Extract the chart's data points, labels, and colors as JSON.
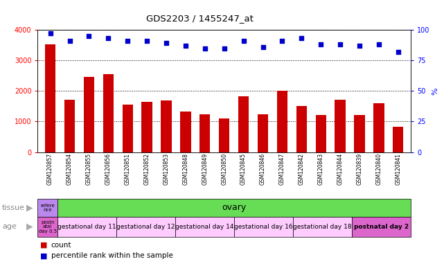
{
  "title": "GDS2203 / 1455247_at",
  "samples": [
    "GSM120857",
    "GSM120854",
    "GSM120855",
    "GSM120856",
    "GSM120851",
    "GSM120852",
    "GSM120853",
    "GSM120848",
    "GSM120849",
    "GSM120850",
    "GSM120845",
    "GSM120846",
    "GSM120847",
    "GSM120842",
    "GSM120843",
    "GSM120844",
    "GSM120839",
    "GSM120840",
    "GSM120841"
  ],
  "counts": [
    3520,
    1720,
    2470,
    2540,
    1560,
    1650,
    1700,
    1330,
    1230,
    1100,
    1830,
    1230,
    2000,
    1510,
    1220,
    1720,
    1220,
    1600,
    830
  ],
  "percentiles": [
    97,
    91,
    95,
    93,
    91,
    91,
    89,
    87,
    85,
    85,
    91,
    86,
    91,
    93,
    88,
    88,
    87,
    88,
    82
  ],
  "bar_color": "#cc0000",
  "dot_color": "#0000cc",
  "ylim_left": [
    0,
    4000
  ],
  "ylim_right": [
    0,
    100
  ],
  "yticks_left": [
    0,
    1000,
    2000,
    3000,
    4000
  ],
  "yticks_right": [
    0,
    25,
    50,
    75,
    100
  ],
  "tissue_row": {
    "label": "tissue",
    "first_cell_text": "refere\nnce",
    "first_cell_color": "#bb88ee",
    "rest_text": "ovary",
    "rest_color": "#66dd55",
    "first_count": 1,
    "rest_count": 18
  },
  "age_row": {
    "label": "age",
    "groups": [
      {
        "text": "postn\natal\nday 0.5",
        "count": 1,
        "color": "#dd66cc"
      },
      {
        "text": "gestational day 11",
        "count": 3,
        "color": "#ffccff"
      },
      {
        "text": "gestational day 12",
        "count": 3,
        "color": "#ffccff"
      },
      {
        "text": "gestational day 14",
        "count": 3,
        "color": "#ffccff"
      },
      {
        "text": "gestational day 16",
        "count": 3,
        "color": "#ffccff"
      },
      {
        "text": "gestational day 18",
        "count": 3,
        "color": "#ffccff"
      },
      {
        "text": "postnatal day 2",
        "count": 3,
        "color": "#dd66cc"
      }
    ]
  },
  "bg_color": "#ffffff",
  "axis_bg": "#ffffff",
  "grid_color": "#000000"
}
